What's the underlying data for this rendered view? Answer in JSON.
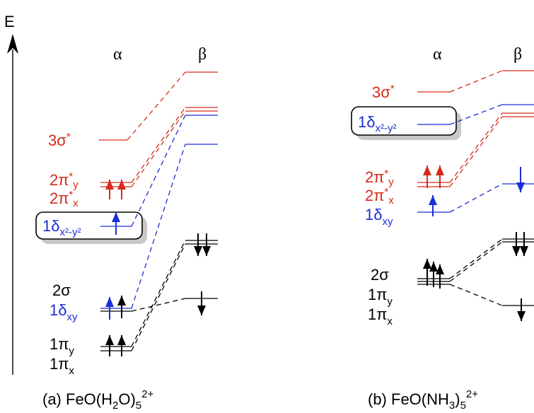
{
  "axis": {
    "label": "E"
  },
  "colors": {
    "black": "#000000",
    "red": "#d62a1a",
    "blue": "#1a2fd6",
    "shadow": "#c8c8c8"
  },
  "panel_a": {
    "alpha": "α",
    "beta": "β",
    "caption": {
      "prefix": "(a) FeO(H",
      "sub1": "2",
      "mid": "O)",
      "sub2": "5",
      "sup": "2+"
    },
    "labels": {
      "sigma_star": {
        "main": "3σ",
        "star": "*"
      },
      "pi_y": {
        "main": "2π",
        "star": "*",
        "sub": "y"
      },
      "pi_x": {
        "main": "2π",
        "star": "*",
        "sub": "x"
      },
      "delta_x2y2": {
        "main": "1δ",
        "sub": "x²-y²"
      },
      "sigma2": {
        "main": "2σ"
      },
      "delta_xy": {
        "main": "1δ",
        "sub": "xy"
      },
      "pi1_y": {
        "main": "1π",
        "sub": "y"
      },
      "pi1_x": {
        "main": "1π",
        "sub": "x"
      }
    }
  },
  "panel_b": {
    "alpha": "α",
    "beta": "β",
    "caption": {
      "prefix": "(b) FeO(NH",
      "sub1": "3",
      "mid": ")",
      "sub2": "5",
      "sup": "2+"
    },
    "labels": {
      "sigma_star": {
        "main": "3σ",
        "star": "*"
      },
      "delta_x2y2": {
        "main": "1δ",
        "sub": "x²-y²"
      },
      "pi_y": {
        "main": "2π",
        "star": "*",
        "sub": "y"
      },
      "pi_x": {
        "main": "2π",
        "star": "*",
        "sub": "x"
      },
      "delta_xy": {
        "main": "1δ",
        "sub": "xy"
      },
      "sigma2": {
        "main": "2σ"
      },
      "pi1_y": {
        "main": "1π",
        "sub": "y"
      },
      "pi1_x": {
        "main": "1π",
        "sub": "x"
      }
    }
  }
}
